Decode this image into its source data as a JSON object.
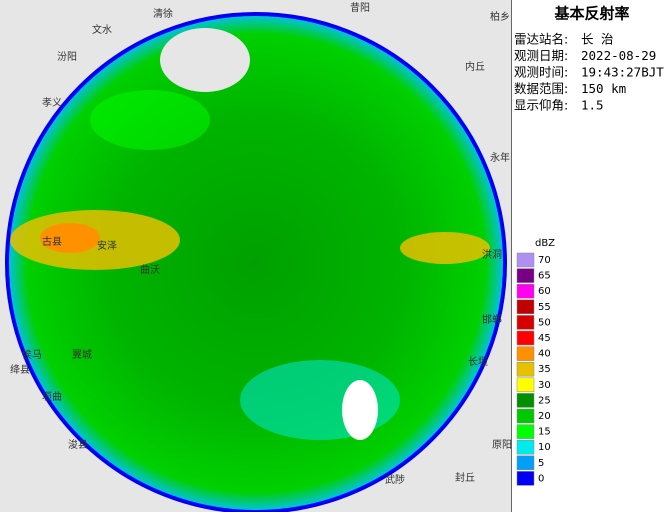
{
  "panel": {
    "title": "基本反射率",
    "rows": [
      {
        "label": "雷达站名:",
        "value": "长 治"
      },
      {
        "label": "观测日期:",
        "value": "2022-08-29"
      },
      {
        "label": "观测时间:",
        "value": "19:43:27BJT"
      },
      {
        "label": "数据范围:",
        "value": "150 km"
      },
      {
        "label": "显示仰角:",
        "value": "1.5"
      }
    ],
    "legend": {
      "unit": "dBZ",
      "items": [
        {
          "label": "70",
          "color": "#ad90f0"
        },
        {
          "label": "65",
          "color": "#780084"
        },
        {
          "label": "60",
          "color": "#ff00f0"
        },
        {
          "label": "55",
          "color": "#c00000"
        },
        {
          "label": "50",
          "color": "#d60000"
        },
        {
          "label": "45",
          "color": "#ff0000"
        },
        {
          "label": "40",
          "color": "#ff9000"
        },
        {
          "label": "35",
          "color": "#e7c000"
        },
        {
          "label": "30",
          "color": "#ffff00"
        },
        {
          "label": "25",
          "color": "#009000"
        },
        {
          "label": "20",
          "color": "#00c800"
        },
        {
          "label": "15",
          "color": "#00ff00"
        },
        {
          "label": "10",
          "color": "#00ecec"
        },
        {
          "label": "5",
          "color": "#01a0f6"
        },
        {
          "label": "0",
          "color": "#0000f6"
        }
      ]
    }
  },
  "map": {
    "places": [
      "清徐",
      "文水",
      "汾阳",
      "孝义",
      "昔阳",
      "内丘",
      "柏乡",
      "永年",
      "洪洞",
      "古县",
      "安泽",
      "曲沃",
      "侯马",
      "绛县",
      "垣曲",
      "浚县",
      "长垣",
      "原阳",
      "武陟",
      "封丘",
      "邯郸",
      "翼城"
    ]
  }
}
